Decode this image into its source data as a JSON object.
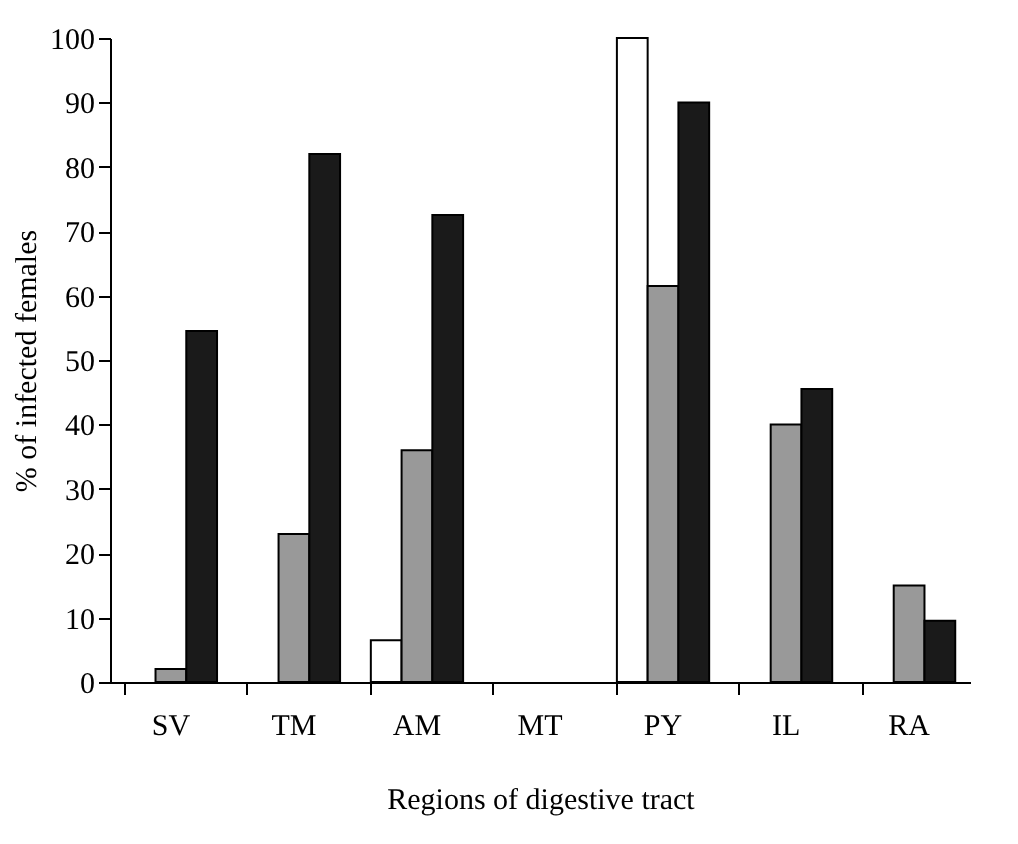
{
  "chart_data": {
    "type": "bar",
    "xlabel": "Regions of digestive tract",
    "ylabel": "% of infected females",
    "categories": [
      "SV",
      "TM",
      "AM",
      "MT",
      "PY",
      "IL",
      "RA"
    ],
    "series": [
      {
        "color": "#ffffff",
        "values": [
          0,
          0,
          6.5,
          0,
          100,
          0,
          0
        ]
      },
      {
        "color": "#999999",
        "values": [
          2,
          23,
          36,
          0,
          61.5,
          40,
          15
        ]
      },
      {
        "color": "#1a1a1a",
        "values": [
          54.5,
          82,
          72.5,
          0,
          90,
          45.5,
          9.5
        ]
      }
    ],
    "ylim": [
      0,
      100
    ],
    "yticks": [
      0,
      10,
      20,
      30,
      40,
      50,
      60,
      70,
      80,
      90,
      100
    ],
    "grid": false,
    "legend": false
  }
}
